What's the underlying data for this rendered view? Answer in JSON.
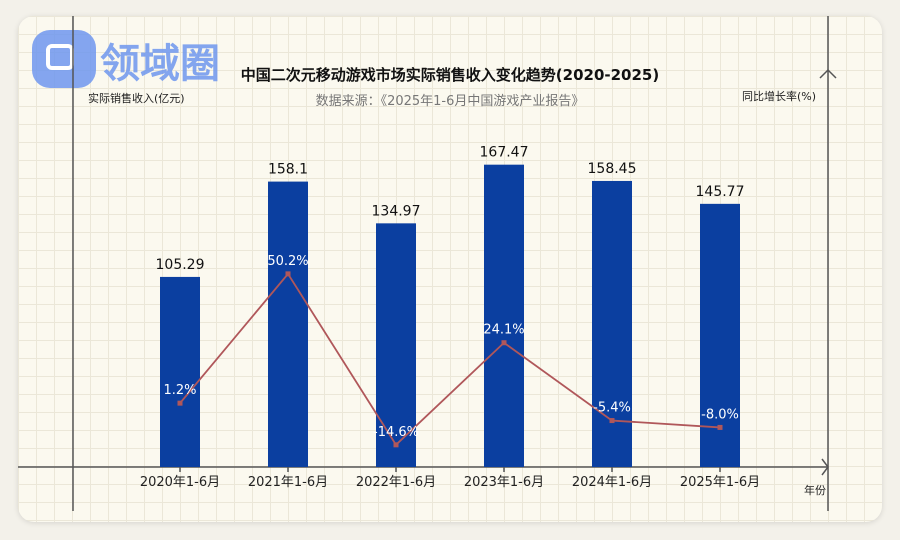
{
  "watermark": {
    "text": "领域圈"
  },
  "chart_data": {
    "type": "bar",
    "title": "中国二次元移动游戏市场实际销售收入变化趋势(2020-2025)",
    "subtitle": "数据来源：《2025年1-6月中国游戏产业报告》",
    "xlabel": "年份",
    "ylabel": "实际销售收入(亿元)",
    "y2label": "同比增长率(%)",
    "categories": [
      "2020年1-6月",
      "2021年1-6月",
      "2022年1-6月",
      "2023年1-6月",
      "2024年1-6月",
      "2025年1-6月"
    ],
    "ylim": [
      0,
      190
    ],
    "y2lim": [
      -23,
      107
    ],
    "grid": true,
    "series": [
      {
        "type": "bar",
        "color": "#0b3fa0",
        "values": [
          105.29,
          158.1,
          134.97,
          167.47,
          158.45,
          145.77
        ],
        "labels": [
          "105.29",
          "158.1",
          "134.97",
          "167.47",
          "158.45",
          "145.77"
        ]
      },
      {
        "type": "line",
        "axis": "right",
        "color": "#b0575a",
        "values": [
          1.2,
          50.2,
          -14.6,
          24.1,
          -5.4,
          -8.0
        ],
        "labels": [
          "1.2%",
          "50.2%",
          "-14.6%",
          "24.1%",
          "-5.4%",
          "-8.0%"
        ]
      }
    ]
  }
}
